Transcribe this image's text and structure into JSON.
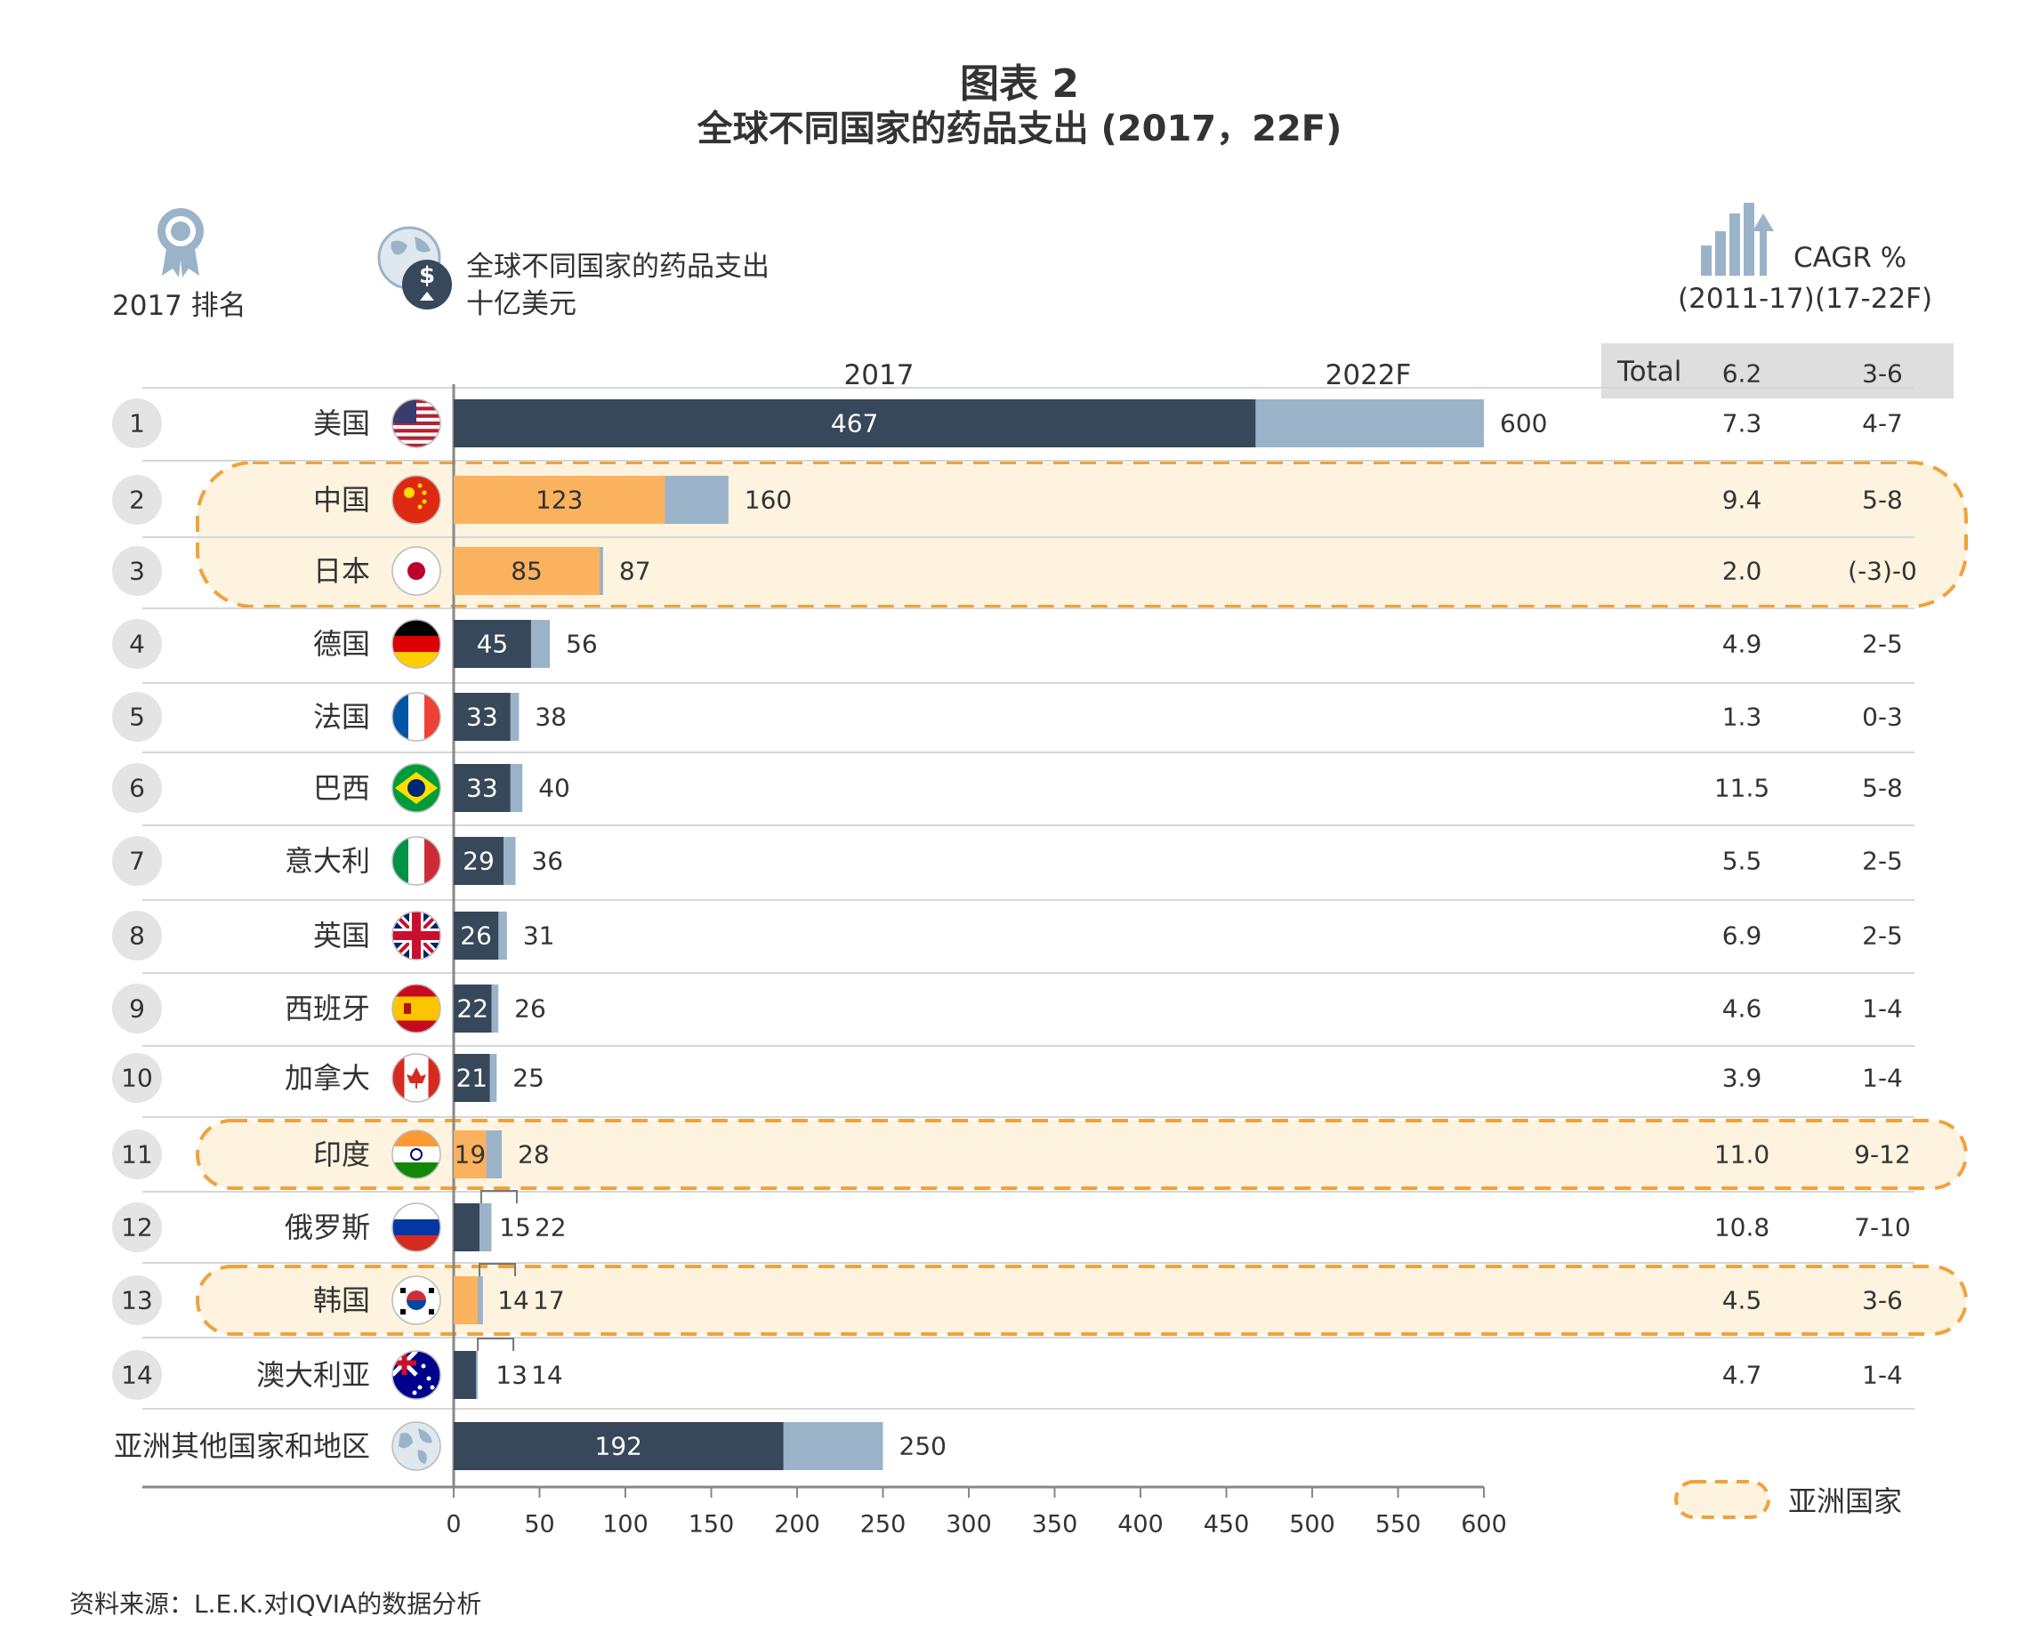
{
  "title": "图表 2",
  "subtitle": "全球不同国家的药品支出 (2017，22F)",
  "header": {
    "rank_label": "2017 排名",
    "spend_label_line1": "全球不同国家的药品支出",
    "spend_label_line2": "十亿美元",
    "cagr_label": "CAGR %",
    "cagr_col1": "(2011-17)",
    "cagr_col2": "(17-22F)",
    "col_2017": "2017",
    "col_2022": "2022F",
    "total_label": "Total",
    "total_cagr1": "6.2",
    "total_cagr2": "3-6"
  },
  "legend": {
    "asia_label": "亚洲国家"
  },
  "source": "资料来源：L.E.K.对IQVIA的数据分析",
  "colors": {
    "dark_bar": "#36485a",
    "light_bar": "#9bb3c8",
    "asia_bar": "#fbb25f",
    "asia_band": "#fdf3df",
    "asia_border": "#f0a23c",
    "row_line": "#d6d6d6",
    "rank_circle": "#e4e4e4"
  },
  "chart_data": {
    "type": "bar",
    "orientation": "horizontal",
    "xlim": [
      0,
      600
    ],
    "xticks": [
      "0",
      "50",
      "100",
      "150",
      "200",
      "250",
      "300",
      "350",
      "400",
      "450",
      "500",
      "550",
      "600"
    ],
    "series": [
      {
        "name": "2017",
        "values": [
          467,
          123,
          85,
          45,
          33,
          33,
          29,
          26,
          22,
          21,
          19,
          15,
          14,
          13,
          192
        ]
      },
      {
        "name": "2022F",
        "values": [
          600,
          160,
          87,
          56,
          38,
          40,
          36,
          31,
          26,
          25,
          28,
          22,
          17,
          14,
          250
        ]
      }
    ],
    "rows": [
      {
        "rank": "1",
        "country": "美国",
        "v2017": 467,
        "v2022": 600,
        "cagr1": "7.3",
        "cagr2": "4-7",
        "asia": false,
        "flag": "us-flag-icon"
      },
      {
        "rank": "2",
        "country": "中国",
        "v2017": 123,
        "v2022": 160,
        "cagr1": "9.4",
        "cagr2": "5-8",
        "asia": true,
        "flag": "china-flag-icon"
      },
      {
        "rank": "3",
        "country": "日本",
        "v2017": 85,
        "v2022": 87,
        "cagr1": "2.0",
        "cagr2": "(-3)-0",
        "asia": true,
        "flag": "japan-flag-icon"
      },
      {
        "rank": "4",
        "country": "德国",
        "v2017": 45,
        "v2022": 56,
        "cagr1": "4.9",
        "cagr2": "2-5",
        "asia": false,
        "flag": "germany-flag-icon"
      },
      {
        "rank": "5",
        "country": "法国",
        "v2017": 33,
        "v2022": 38,
        "cagr1": "1.3",
        "cagr2": "0-3",
        "asia": false,
        "flag": "france-flag-icon"
      },
      {
        "rank": "6",
        "country": "巴西",
        "v2017": 33,
        "v2022": 40,
        "cagr1": "11.5",
        "cagr2": "5-8",
        "asia": false,
        "flag": "brazil-flag-icon"
      },
      {
        "rank": "7",
        "country": "意大利",
        "v2017": 29,
        "v2022": 36,
        "cagr1": "5.5",
        "cagr2": "2-5",
        "asia": false,
        "flag": "italy-flag-icon"
      },
      {
        "rank": "8",
        "country": "英国",
        "v2017": 26,
        "v2022": 31,
        "cagr1": "6.9",
        "cagr2": "2-5",
        "asia": false,
        "flag": "uk-flag-icon"
      },
      {
        "rank": "9",
        "country": "西班牙",
        "v2017": 22,
        "v2022": 26,
        "cagr1": "4.6",
        "cagr2": "1-4",
        "asia": false,
        "flag": "spain-flag-icon"
      },
      {
        "rank": "10",
        "country": "加拿大",
        "v2017": 21,
        "v2022": 25,
        "cagr1": "3.9",
        "cagr2": "1-4",
        "asia": false,
        "flag": "canada-flag-icon"
      },
      {
        "rank": "11",
        "country": "印度",
        "v2017": 19,
        "v2022": 28,
        "cagr1": "11.0",
        "cagr2": "9-12",
        "asia": true,
        "flag": "india-flag-icon"
      },
      {
        "rank": "12",
        "country": "俄罗斯",
        "v2017": 15,
        "v2022": 22,
        "cagr1": "10.8",
        "cagr2": "7-10",
        "asia": false,
        "flag": "russia-flag-icon"
      },
      {
        "rank": "13",
        "country": "韩国",
        "v2017": 14,
        "v2022": 17,
        "cagr1": "4.5",
        "cagr2": "3-6",
        "asia": true,
        "flag": "korea-flag-icon"
      },
      {
        "rank": "14",
        "country": "澳大利亚",
        "v2017": 13,
        "v2022": 14,
        "cagr1": "4.7",
        "cagr2": "1-4",
        "asia": false,
        "flag": "australia-flag-icon"
      },
      {
        "rank": "",
        "country": "亚洲其他国家和地区",
        "v2017": 192,
        "v2022": 250,
        "cagr1": "",
        "cagr2": "",
        "asia": false,
        "flag": "globe-icon"
      }
    ]
  }
}
